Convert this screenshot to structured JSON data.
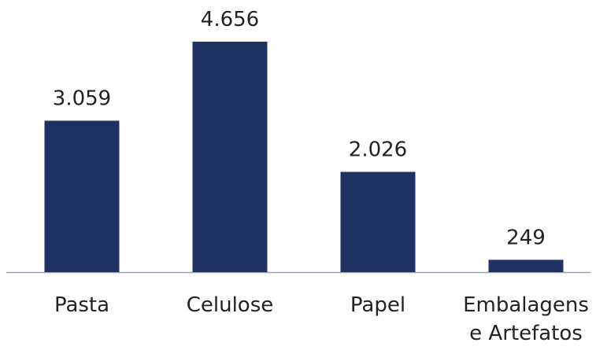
{
  "chart_data": {
    "type": "bar",
    "title": "",
    "xlabel": "",
    "ylabel": "",
    "categories": [
      "Pasta",
      "Celulose",
      "Papel",
      "Embalagens e Artefatos"
    ],
    "category_lines": [
      [
        "Pasta"
      ],
      [
        "Celulose"
      ],
      [
        "Papel"
      ],
      [
        "Embalagens",
        "e Artefatos"
      ]
    ],
    "values": [
      3059,
      4656,
      2026,
      249
    ],
    "value_labels": [
      "3.059",
      "4.656",
      "2.026",
      "249"
    ],
    "ylim": [
      0,
      4656
    ],
    "grid": false,
    "legend": "none",
    "bar_color": "#1f3160",
    "baseline_color": "#9aa3b0"
  }
}
